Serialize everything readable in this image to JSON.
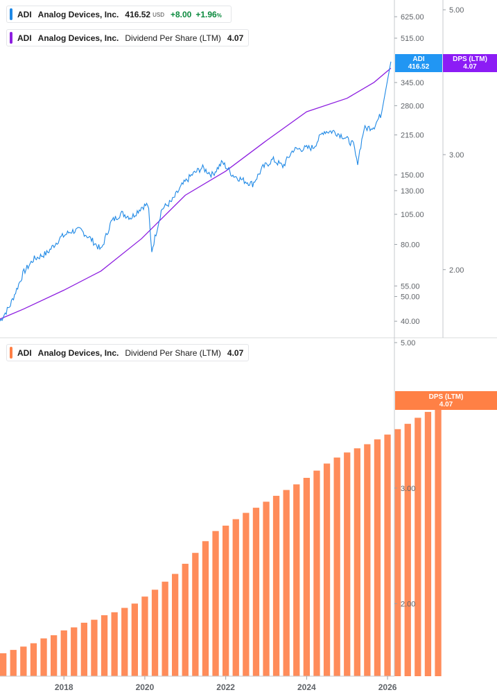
{
  "ticker": {
    "symbol": "ADI",
    "name": "Analog Devices, Inc.",
    "price": "416.52",
    "currency": "USD",
    "change": "+8.00",
    "change_pct": "+1.96",
    "pct_sign": "%"
  },
  "dividend_legend": {
    "symbol": "ADI",
    "name": "Analog Devices, Inc.",
    "metric": "Dividend Per Share (LTM)",
    "value": "4.07"
  },
  "badges": {
    "price": {
      "line1": "ADI",
      "line2": "416.52"
    },
    "dps_top": {
      "line1": "DPS (LTM)",
      "line2": "4.07"
    },
    "dps_bottom": {
      "line1": "DPS (LTM)",
      "line2": "4.07"
    }
  },
  "colors": {
    "price_line": "#1e88e5",
    "dps_line": "#8d1ee0",
    "bars": "#ff8c5a",
    "badge_price": "#2196f3",
    "badge_dps_top": "#8c1cf5",
    "badge_dps_bottom": "#ff8045",
    "positive": "#0b8a3e"
  },
  "chart_data": [
    {
      "type": "line",
      "scale": "log",
      "x_range": [
        "2016-06",
        "2026-03"
      ],
      "grid": false,
      "series": [
        {
          "name": "ADI",
          "axis": "left",
          "x": [
            "2016-06",
            "2016-09",
            "2017-01",
            "2017-04",
            "2017-08",
            "2017-12",
            "2018-03",
            "2018-06",
            "2018-09",
            "2018-12",
            "2019-03",
            "2019-06",
            "2019-09",
            "2019-12",
            "2020-02",
            "2020-03",
            "2020-06",
            "2020-09",
            "2020-12",
            "2021-03",
            "2021-06",
            "2021-09",
            "2021-12",
            "2022-03",
            "2022-06",
            "2022-09",
            "2022-12",
            "2023-03",
            "2023-06",
            "2023-09",
            "2023-12",
            "2024-03",
            "2024-06",
            "2024-09",
            "2024-12",
            "2025-03",
            "2025-04",
            "2025-06",
            "2025-09",
            "2025-11",
            "2026-01",
            "2026-02"
          ],
          "values": [
            40,
            46,
            62,
            70,
            74,
            85,
            90,
            91,
            84,
            76,
            98,
            106,
            102,
            112,
            115,
            75,
            110,
            118,
            136,
            150,
            160,
            150,
            168,
            150,
            143,
            138,
            160,
            172,
            162,
            188,
            190,
            192,
            222,
            222,
            212,
            196,
            165,
            227,
            232,
            258,
            320,
            416.52
          ]
        },
        {
          "name": "Dividend Per Share (LTM)",
          "axis": "right",
          "x": [
            "2016-06",
            "2017-01",
            "2018-01",
            "2018-12",
            "2019-12",
            "2021-01",
            "2022-01",
            "2023-01",
            "2024-01",
            "2025-01",
            "2025-09",
            "2026-02"
          ],
          "values": [
            1.68,
            1.74,
            1.86,
            1.99,
            2.23,
            2.6,
            2.83,
            3.15,
            3.49,
            3.66,
            3.87,
            4.07
          ]
        }
      ],
      "y_left_ticks": [
        40,
        50,
        55,
        80,
        105,
        130,
        150,
        215,
        280,
        345,
        515,
        625
      ],
      "y_right_ticks": [
        2.0,
        3.0,
        5.0
      ],
      "y_left_range": [
        36,
        700
      ],
      "y_right_range": [
        1.6,
        5.1
      ]
    },
    {
      "type": "bar",
      "scale": "log",
      "series_name": "Dividend Per Share (LTM)",
      "x_start": "2016-07",
      "x_step_months": 3,
      "values": [
        1.68,
        1.7,
        1.72,
        1.74,
        1.77,
        1.79,
        1.82,
        1.84,
        1.87,
        1.89,
        1.92,
        1.94,
        1.97,
        2.0,
        2.05,
        2.1,
        2.16,
        2.22,
        2.3,
        2.39,
        2.49,
        2.58,
        2.63,
        2.69,
        2.75,
        2.8,
        2.86,
        2.92,
        2.98,
        3.04,
        3.11,
        3.19,
        3.27,
        3.34,
        3.4,
        3.45,
        3.5,
        3.56,
        3.62,
        3.69,
        3.76,
        3.84,
        3.92,
        4.07
      ],
      "y_ticks": [
        2.0,
        3.0,
        5.0
      ],
      "y_range": [
        1.55,
        5.0
      ],
      "x_ticks": [
        "2018",
        "2020",
        "2022",
        "2024",
        "2026"
      ]
    }
  ]
}
